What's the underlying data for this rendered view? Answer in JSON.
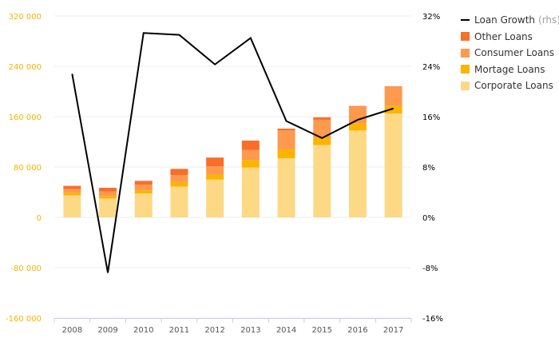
{
  "chart_data": {
    "type": "bar",
    "categories": [
      "2008",
      "2009",
      "2010",
      "2011",
      "2012",
      "2013",
      "2014",
      "2015",
      "2016",
      "2017"
    ],
    "series": [
      {
        "name": "Corporate Loans",
        "kind": "stacked-bar",
        "axis": "left",
        "values": [
          35000,
          30000,
          38000,
          49000,
          60000,
          79000,
          94000,
          115000,
          138000,
          165000
        ]
      },
      {
        "name": "Mortage Loans",
        "kind": "stacked-bar",
        "axis": "left",
        "values": [
          4000,
          4000,
          5000,
          7000,
          8000,
          12000,
          14000,
          12000,
          11000,
          12000
        ]
      },
      {
        "name": "Consumer Loans",
        "kind": "stacked-bar",
        "axis": "left",
        "values": [
          6000,
          7000,
          9000,
          11000,
          13000,
          16000,
          30000,
          28000,
          27000,
          30000
        ]
      },
      {
        "name": "Other Loans",
        "kind": "stacked-bar",
        "axis": "left",
        "values": [
          5000,
          6000,
          6000,
          10000,
          14000,
          15000,
          3000,
          4000,
          1000,
          1000
        ]
      },
      {
        "name": "Loan Growth",
        "suffix": "(rhs)",
        "kind": "line",
        "axis": "right",
        "values": [
          22.8,
          -8.8,
          29.3,
          29.0,
          24.3,
          28.5,
          15.3,
          12.6,
          15.5,
          17.3
        ]
      }
    ],
    "y_left": {
      "ylim": [
        -160000,
        320000
      ],
      "ticks": [
        "320 000",
        "240 000",
        "160 000",
        "80 000",
        "0",
        "-80 000",
        "-160 000"
      ]
    },
    "y_right": {
      "ylim": [
        -16,
        32
      ],
      "ticks": [
        "32%",
        "24%",
        "16%",
        "8%",
        "0%",
        "-8%",
        "-16%"
      ]
    },
    "grid": true,
    "legend_position": "top-right",
    "title": "",
    "xlabel": "",
    "ylabel": ""
  },
  "colors": {
    "Corporate Loans": "#fdd985",
    "Mortage Loans": "#fbb400",
    "Consumer Loans": "#fd9a4e",
    "Other Loans": "#f96e29",
    "Loan Growth": "#000000",
    "left_axis_text": "#f5b300",
    "right_axis_text": "#000000",
    "grid": "#ececec"
  }
}
